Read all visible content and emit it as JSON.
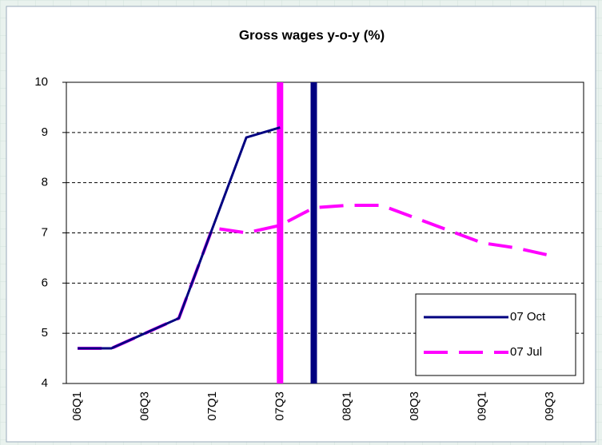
{
  "chart_data": {
    "type": "line",
    "title": "Gross wages y-o-y (%)",
    "categories": [
      "06Q1",
      null,
      "06Q3",
      null,
      "07Q1",
      null,
      "07Q3",
      null,
      "08Q1",
      null,
      "08Q3",
      null,
      "09Q1",
      null,
      "09Q3"
    ],
    "series": [
      {
        "name": "07 Oct",
        "color": "#000080",
        "dash": false,
        "values": [
          4.7,
          4.7,
          5.0,
          5.3,
          7.1,
          8.9,
          9.1,
          null,
          null,
          null,
          null,
          null,
          null,
          null,
          null
        ]
      },
      {
        "name": "07 Jul",
        "color": "#ff00ff",
        "dash": true,
        "values": [
          4.7,
          4.7,
          5.0,
          5.3,
          7.1,
          7.0,
          7.15,
          7.5,
          7.55,
          7.55,
          7.3,
          7.05,
          6.8,
          6.7,
          6.55
        ]
      }
    ],
    "ylim": [
      4,
      10
    ],
    "yticks": [
      4,
      5,
      6,
      7,
      8,
      9,
      10
    ],
    "grid": true
  }
}
